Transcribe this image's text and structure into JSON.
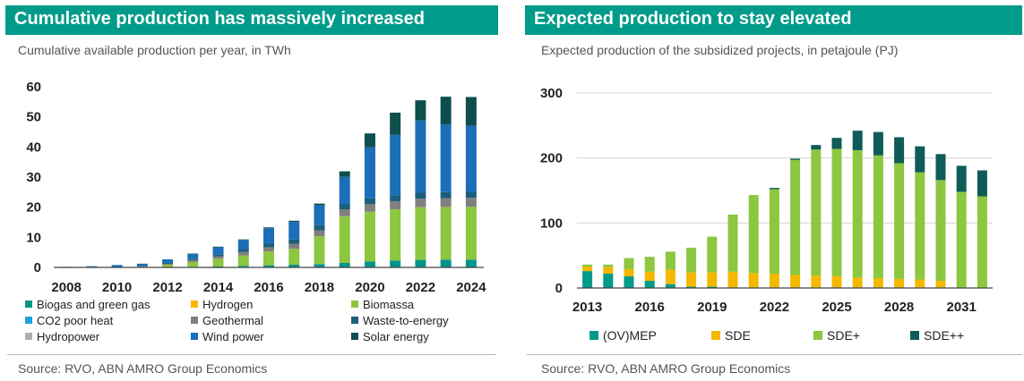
{
  "left": {
    "title": "Cumulative production has massively increased",
    "subtitle": "Cumulative available production per year, in TWh",
    "source": "Source: RVO, ABN AMRO Group Economics"
  },
  "right": {
    "title": "Expected production to stay elevated",
    "subtitle": "Expected production of the subsidized projects, in petajoule (PJ)",
    "source": "Source: RVO, ABN AMRO Group Economics"
  },
  "colors": {
    "title_bg": "#009b8a",
    "biogas": "#00958a",
    "hydrogen": "#f5b800",
    "biomassa": "#8dc63f",
    "co2_heat": "#1fa3df",
    "geothermal": "#808080",
    "waste": "#1b5e7a",
    "hydropower": "#b0b0b0",
    "wind": "#1a6fb8",
    "solar": "#0e4f4d",
    "ovmep": "#009b8a",
    "sde": "#f5b800",
    "sdeplus": "#8dc63f",
    "sdeplusplus": "#0e5c57"
  },
  "chart_data": [
    {
      "type": "bar",
      "stacked": true,
      "title": "Cumulative production has massively increased",
      "subtitle": "Cumulative available production per year, in TWh",
      "x": [
        2008,
        2009,
        2010,
        2011,
        2012,
        2013,
        2014,
        2015,
        2016,
        2017,
        2018,
        2019,
        2020,
        2021,
        2022,
        2023,
        2024
      ],
      "xticks": [
        "2008",
        "2010",
        "2012",
        "2014",
        "2016",
        "2018",
        "2020",
        "2022",
        "2024"
      ],
      "ylim": [
        0,
        60
      ],
      "yticks": [
        "0",
        "10",
        "20",
        "30",
        "40",
        "50",
        "60"
      ],
      "grid": false,
      "legend_position": "bottom",
      "series": [
        {
          "name": "Biogas and green gas",
          "color": "#00958a",
          "values": [
            0,
            0,
            0,
            0.05,
            0.1,
            0.2,
            0.3,
            0.5,
            0.7,
            0.9,
            1.1,
            1.5,
            2.0,
            2.3,
            2.5,
            2.6,
            2.6
          ]
        },
        {
          "name": "Hydrogen",
          "color": "#f5b800",
          "values": [
            0,
            0,
            0,
            0,
            0,
            0,
            0,
            0,
            0,
            0,
            0,
            0,
            0,
            0,
            0,
            0,
            0
          ]
        },
        {
          "name": "Biomassa",
          "color": "#8dc63f",
          "values": [
            0,
            0,
            0,
            0.2,
            0.8,
            1.6,
            2.6,
            3.5,
            4.6,
            5.3,
            9.2,
            15.5,
            16.5,
            17.0,
            17.5,
            17.5,
            17.5
          ]
        },
        {
          "name": "CO2 poor heat",
          "color": "#1fa3df",
          "values": [
            0,
            0,
            0,
            0,
            0,
            0,
            0,
            0,
            0,
            0,
            0,
            0,
            0,
            0,
            0,
            0,
            0
          ]
        },
        {
          "name": "Geothermal",
          "color": "#808080",
          "values": [
            0,
            0,
            0,
            0.1,
            0.3,
            0.6,
            0.8,
            1.1,
            1.4,
            1.6,
            2.0,
            2.3,
            2.5,
            2.7,
            2.8,
            2.9,
            3.0
          ]
        },
        {
          "name": "Waste-to-energy",
          "color": "#1b5e7a",
          "values": [
            0,
            0,
            0,
            0.1,
            0.3,
            0.5,
            0.7,
            1.0,
            1.3,
            1.5,
            1.7,
            1.8,
            1.9,
            2.0,
            2.0,
            2.0,
            2.0
          ]
        },
        {
          "name": "Hydropower",
          "color": "#b0b0b0",
          "values": [
            0,
            0,
            0,
            0,
            0,
            0,
            0,
            0,
            0,
            0,
            0,
            0,
            0,
            0,
            0,
            0,
            0
          ]
        },
        {
          "name": "Wind power",
          "color": "#1a6fb8",
          "values": [
            0.2,
            0.4,
            0.8,
            0.8,
            1.2,
            1.5,
            2.3,
            3.0,
            5.0,
            5.8,
            6.6,
            9.0,
            17.0,
            20.0,
            24.0,
            22.5,
            22.0
          ]
        },
        {
          "name": "Solar energy",
          "color": "#0e4f4d",
          "values": [
            0,
            0,
            0,
            0,
            0,
            0.2,
            0.2,
            0.2,
            0.3,
            0.4,
            0.6,
            1.8,
            4.6,
            7.4,
            6.7,
            9.2,
            9.5
          ]
        }
      ]
    },
    {
      "type": "bar",
      "stacked": true,
      "title": "Expected production to stay elevated",
      "subtitle": "Expected production of the subsidized projects, in petajoule (PJ)",
      "x": [
        2013,
        2014,
        2015,
        2016,
        2017,
        2018,
        2019,
        2020,
        2021,
        2022,
        2023,
        2024,
        2025,
        2026,
        2027,
        2028,
        2029,
        2030,
        2031,
        2032
      ],
      "xticks": [
        "2013",
        "2016",
        "2019",
        "2022",
        "2025",
        "2028",
        "2031"
      ],
      "ylim": [
        0,
        300
      ],
      "yticks": [
        "0",
        "100",
        "200",
        "300"
      ],
      "grid": true,
      "legend_position": "bottom",
      "series": [
        {
          "name": "(OV)MEP",
          "color": "#009b8a",
          "values": [
            26,
            22,
            18,
            11,
            6,
            2,
            2,
            1,
            1,
            1,
            1,
            1,
            1,
            1,
            1,
            1,
            1,
            1,
            0,
            0
          ]
        },
        {
          "name": "SDE",
          "color": "#f5b800",
          "values": [
            7,
            10,
            11,
            14,
            22,
            22,
            22,
            24,
            22,
            21,
            19,
            18,
            17,
            15,
            14,
            13,
            12,
            10,
            0,
            0
          ]
        },
        {
          "name": "SDE+",
          "color": "#8dc63f",
          "values": [
            3,
            4,
            17,
            23,
            28,
            38,
            55,
            88,
            120,
            130,
            177,
            194,
            196,
            196,
            189,
            178,
            165,
            155,
            148,
            141
          ]
        },
        {
          "name": "SDE++",
          "color": "#0e5c57",
          "values": [
            0,
            0,
            0,
            0,
            0,
            0,
            0,
            0,
            0,
            2,
            2,
            7,
            17,
            30,
            36,
            40,
            40,
            40,
            40,
            40
          ]
        }
      ]
    }
  ]
}
